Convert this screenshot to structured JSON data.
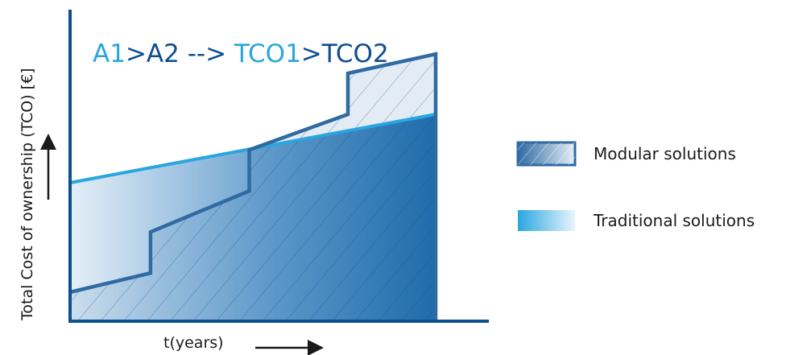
{
  "headline": {
    "a1": "A1",
    "gt1": ">",
    "a2": "A2 --> ",
    "tco1": "TCO1",
    "gt2": ">",
    "tco2": "TCO2"
  },
  "ylabel": "Total Cost of ownership (TCO) [€]",
  "xlabel": "t(years)",
  "legend": {
    "modular": "Modular solutions",
    "traditional": "Traditional solutions"
  },
  "colors": {
    "axis": "#0e4f8f",
    "traditional_line": "#29a6df",
    "modular_line": "#2f6aa3",
    "area_dark": "#1565a8",
    "area_light": "#d9e8f4",
    "text_light_blue": "#29a6df",
    "text_dark_blue": "#0e4f8f",
    "arrow": "#1a1a1a"
  },
  "chart_data": {
    "type": "area",
    "x_unit": "t(years)",
    "y_unit": "TCO [€]",
    "series": [
      {
        "name": "Traditional solutions",
        "points": [
          [
            0,
            0.5
          ],
          [
            1,
            0.75
          ]
        ]
      },
      {
        "name": "Modular solutions",
        "points": [
          [
            0,
            0.1
          ],
          [
            0.22,
            0.17
          ],
          [
            0.22,
            0.32
          ],
          [
            0.49,
            0.47
          ],
          [
            0.49,
            0.62
          ],
          [
            0.76,
            0.75
          ],
          [
            0.76,
            0.9
          ],
          [
            1,
            0.97
          ]
        ]
      }
    ],
    "xlim": [
      0,
      1
    ],
    "ylim": [
      0,
      1
    ],
    "grid": false,
    "legend_position": "right"
  }
}
